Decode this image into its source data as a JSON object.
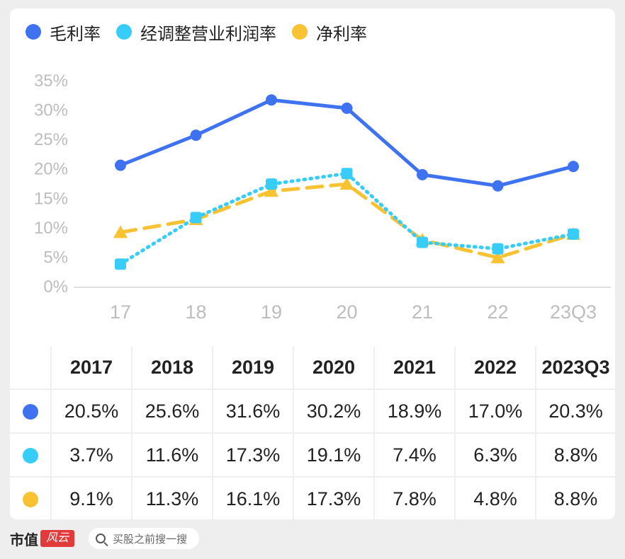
{
  "colors": {
    "gross": "#3e72f0",
    "adjusted": "#38cdf8",
    "net": "#f9c233",
    "axis_text": "#bdbdbd"
  },
  "chart_data": {
    "type": "line",
    "categories": [
      "17",
      "18",
      "19",
      "20",
      "21",
      "22",
      "23Q3"
    ],
    "y_ticks": [
      "0%",
      "5%",
      "10%",
      "15%",
      "20%",
      "25%",
      "30%",
      "35%"
    ],
    "ylim": [
      0,
      35
    ],
    "grid": false,
    "legend_position": "top-left",
    "series": [
      {
        "name": "毛利率",
        "values": [
          20.5,
          25.6,
          31.6,
          30.2,
          18.9,
          17.0,
          20.3
        ],
        "style": "solid",
        "marker": "circle"
      },
      {
        "name": "经调整营业利润率",
        "values": [
          3.7,
          11.6,
          17.3,
          19.1,
          7.4,
          6.3,
          8.8
        ],
        "style": "dotted",
        "marker": "square"
      },
      {
        "name": "净利率",
        "values": [
          9.1,
          11.3,
          16.1,
          17.3,
          7.8,
          4.8,
          8.8
        ],
        "style": "dashed",
        "marker": "triangle"
      }
    ]
  },
  "table": {
    "headers": [
      "2017",
      "2018",
      "2019",
      "2020",
      "2021",
      "2022",
      "2023Q3"
    ],
    "rows": [
      [
        "20.5%",
        "25.6%",
        "31.6%",
        "30.2%",
        "18.9%",
        "17.0%",
        "20.3%"
      ],
      [
        "3.7%",
        "11.6%",
        "17.3%",
        "19.1%",
        "7.4%",
        "6.3%",
        "8.8%"
      ],
      [
        "9.1%",
        "11.3%",
        "16.1%",
        "17.3%",
        "7.8%",
        "4.8%",
        "8.8%"
      ]
    ]
  },
  "footer": {
    "brand": "市值",
    "brand_mark": "风云",
    "search_placeholder": "买股之前搜一搜"
  }
}
